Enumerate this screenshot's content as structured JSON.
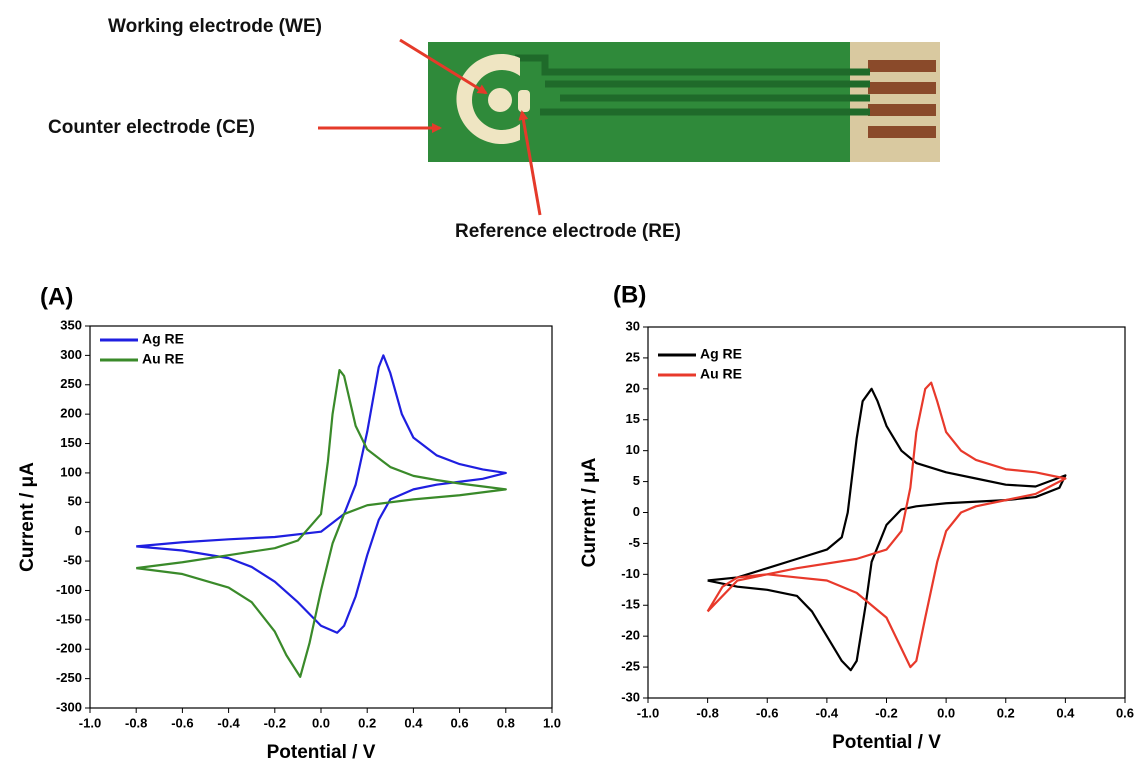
{
  "annotations": [
    "Working electrode (WE)",
    "Counter electrode (CE)",
    "Reference electrode (RE)"
  ],
  "chart_data": [
    {
      "type": "line",
      "title": "(A)",
      "x_label": "Potential / V",
      "y_label": "Current / μA",
      "xlim": [
        -1.0,
        1.0
      ],
      "xticks": [
        {
          "value": -1.0,
          "label": "-1.0"
        },
        {
          "value": -0.8,
          "label": "-0.8"
        },
        {
          "value": -0.6,
          "label": "-0.6"
        },
        {
          "value": -0.4,
          "label": "-0.4"
        },
        {
          "value": -0.2,
          "label": "-0.2"
        },
        {
          "value": 0.0,
          "label": "0.0"
        },
        {
          "value": 0.2,
          "label": "0.2"
        },
        {
          "value": 0.4,
          "label": "0.4"
        },
        {
          "value": 0.6,
          "label": "0.6"
        },
        {
          "value": 0.8,
          "label": "0.8"
        },
        {
          "value": 1.0,
          "label": "1.0"
        }
      ],
      "ylim": [
        -300,
        350
      ],
      "yticks": [
        -300,
        -250,
        -200,
        -150,
        -100,
        -50,
        0,
        50,
        100,
        150,
        200,
        250,
        300,
        350
      ],
      "legend": "upper left",
      "series": [
        {
          "name": "Ag RE",
          "color": "#1f1fe0",
          "x": [
            -0.8,
            -0.6,
            -0.4,
            -0.2,
            0.0,
            0.1,
            0.15,
            0.2,
            0.25,
            0.27,
            0.3,
            0.35,
            0.4,
            0.5,
            0.6,
            0.7,
            0.8,
            0.7,
            0.6,
            0.5,
            0.4,
            0.3,
            0.25,
            0.2,
            0.15,
            0.1,
            0.07,
            0.0,
            -0.1,
            -0.2,
            -0.3,
            -0.4,
            -0.6,
            -0.8
          ],
          "values": [
            -25,
            -18,
            -13,
            -9,
            0,
            30,
            80,
            170,
            280,
            300,
            270,
            200,
            160,
            130,
            115,
            106,
            100,
            90,
            85,
            80,
            72,
            55,
            20,
            -40,
            -110,
            -160,
            -172,
            -160,
            -120,
            -85,
            -60,
            -45,
            -32,
            -25
          ]
        },
        {
          "name": "Au RE",
          "color": "#3a8a2a",
          "x": [
            -0.8,
            -0.6,
            -0.4,
            -0.2,
            -0.1,
            0.0,
            0.03,
            0.05,
            0.08,
            0.1,
            0.15,
            0.2,
            0.3,
            0.4,
            0.5,
            0.6,
            0.8,
            0.6,
            0.4,
            0.2,
            0.1,
            0.05,
            0.0,
            -0.05,
            -0.09,
            -0.15,
            -0.2,
            -0.3,
            -0.4,
            -0.6,
            -0.8
          ],
          "values": [
            -62,
            -52,
            -40,
            -28,
            -15,
            30,
            120,
            200,
            275,
            265,
            180,
            140,
            110,
            95,
            88,
            82,
            72,
            62,
            55,
            45,
            30,
            -20,
            -100,
            -190,
            -247,
            -210,
            -170,
            -120,
            -95,
            -72,
            -62
          ]
        }
      ]
    },
    {
      "type": "line",
      "title": "(B)",
      "x_label": "Potential / V",
      "y_label": "Current / μA",
      "xlim": [
        -1.0,
        0.6
      ],
      "xticks": [
        {
          "value": -1.0,
          "label": "-1.0"
        },
        {
          "value": -0.8,
          "label": "-0.8"
        },
        {
          "value": -0.6,
          "label": "-0.6"
        },
        {
          "value": -0.4,
          "label": "-0.4"
        },
        {
          "value": -0.2,
          "label": "-0.2"
        },
        {
          "value": 0.0,
          "label": "0.0"
        },
        {
          "value": 0.2,
          "label": "0.2"
        },
        {
          "value": 0.4,
          "label": "0.4"
        },
        {
          "value": 0.6,
          "label": "0.6"
        }
      ],
      "ylim": [
        -30,
        30
      ],
      "yticks": [
        -30,
        -25,
        -20,
        -15,
        -10,
        -5,
        0,
        5,
        10,
        15,
        20,
        25,
        30
      ],
      "legend": "upper left",
      "series": [
        {
          "name": "Ag RE",
          "color": "#000000",
          "x": [
            -0.8,
            -0.7,
            -0.6,
            -0.5,
            -0.45,
            -0.4,
            -0.35,
            -0.32,
            -0.3,
            -0.27,
            -0.25,
            -0.2,
            -0.15,
            -0.1,
            0.0,
            0.2,
            0.3,
            0.38,
            0.4,
            0.3,
            0.2,
            0.1,
            0.0,
            -0.1,
            -0.15,
            -0.2,
            -0.23,
            -0.25,
            -0.28,
            -0.3,
            -0.33,
            -0.35,
            -0.4,
            -0.5,
            -0.6,
            -0.7,
            -0.8
          ],
          "values": [
            -11,
            -12,
            -12.5,
            -13.5,
            -16,
            -20,
            -24,
            -25.5,
            -24,
            -15,
            -8,
            -2,
            0.5,
            1,
            1.5,
            2,
            2.5,
            4,
            6,
            4.2,
            4.5,
            5.5,
            6.5,
            8,
            10,
            14,
            18,
            20,
            18,
            12,
            0,
            -4,
            -6,
            -7.5,
            -9,
            -10.5,
            -11
          ]
        },
        {
          "name": "Au RE",
          "color": "#e8392b",
          "x": [
            -0.8,
            -0.75,
            -0.7,
            -0.6,
            -0.5,
            -0.4,
            -0.3,
            -0.2,
            -0.15,
            -0.12,
            -0.1,
            -0.07,
            -0.03,
            0.0,
            0.05,
            0.1,
            0.2,
            0.3,
            0.4,
            0.3,
            0.2,
            0.1,
            0.05,
            0.0,
            -0.03,
            -0.05,
            -0.07,
            -0.1,
            -0.12,
            -0.15,
            -0.2,
            -0.3,
            -0.5,
            -0.7,
            -0.8
          ],
          "values": [
            -16,
            -12,
            -10.5,
            -10,
            -10.5,
            -11,
            -13,
            -17,
            -22,
            -25,
            -24,
            -17,
            -8,
            -3,
            0,
            1,
            2,
            3,
            5.5,
            6.5,
            7,
            8.5,
            10,
            13,
            18,
            21,
            20,
            13,
            4,
            -3,
            -6,
            -7.5,
            -9,
            -11,
            -16
          ]
        }
      ]
    }
  ]
}
